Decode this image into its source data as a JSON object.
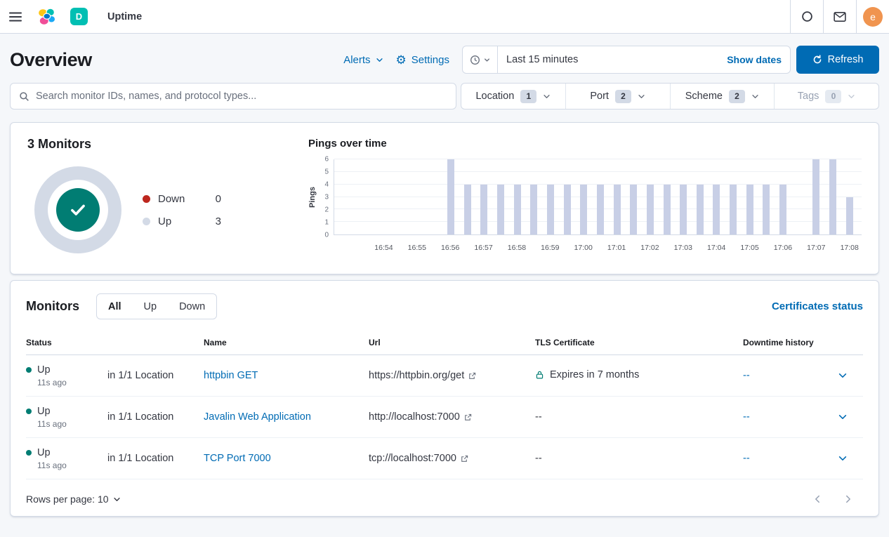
{
  "topbar": {
    "breadcrumb": "Uptime",
    "space_initial": "D",
    "user_initial": "e"
  },
  "page": {
    "title": "Overview",
    "alerts_label": "Alerts",
    "settings_label": "Settings",
    "time_range": "Last 15 minutes",
    "show_dates_label": "Show dates",
    "refresh_label": "Refresh"
  },
  "filters": {
    "search_placeholder": "Search monitor IDs, names, and protocol types...",
    "groups": [
      {
        "label": "Location",
        "count": "1",
        "disabled": false
      },
      {
        "label": "Port",
        "count": "2",
        "disabled": false
      },
      {
        "label": "Scheme",
        "count": "2",
        "disabled": false
      },
      {
        "label": "Tags",
        "count": "0",
        "disabled": true
      }
    ]
  },
  "snapshot": {
    "title": "3 Monitors",
    "legend": [
      {
        "label": "Down",
        "value": "0",
        "color": "#bd271e"
      },
      {
        "label": "Up",
        "value": "3",
        "color": "#d3dae6"
      }
    ]
  },
  "chart_data": {
    "type": "bar",
    "title": "Pings over time",
    "xlabel": "",
    "ylabel": "Pings",
    "ylim": [
      0,
      6
    ],
    "yticks": [
      0,
      1,
      2,
      3,
      4,
      5,
      6
    ],
    "xticks": [
      "16:54",
      "16:55",
      "16:56",
      "16:57",
      "16:58",
      "16:59",
      "17:00",
      "17:01",
      "17:02",
      "17:03",
      "17:04",
      "17:05",
      "17:06",
      "17:07",
      "17:08"
    ],
    "bar_color": "#c8cfe6",
    "grid": true,
    "legend_position": "none",
    "points": [
      {
        "x": "16:56:00",
        "y": 6
      },
      {
        "x": "16:56:30",
        "y": 4
      },
      {
        "x": "16:57:00",
        "y": 4
      },
      {
        "x": "16:57:30",
        "y": 4
      },
      {
        "x": "16:58:00",
        "y": 4
      },
      {
        "x": "16:58:30",
        "y": 4
      },
      {
        "x": "16:59:00",
        "y": 4
      },
      {
        "x": "16:59:30",
        "y": 4
      },
      {
        "x": "17:00:00",
        "y": 4
      },
      {
        "x": "17:00:30",
        "y": 4
      },
      {
        "x": "17:01:00",
        "y": 4
      },
      {
        "x": "17:01:30",
        "y": 4
      },
      {
        "x": "17:02:00",
        "y": 4
      },
      {
        "x": "17:02:30",
        "y": 4
      },
      {
        "x": "17:03:00",
        "y": 4
      },
      {
        "x": "17:03:30",
        "y": 4
      },
      {
        "x": "17:04:00",
        "y": 4
      },
      {
        "x": "17:04:30",
        "y": 4
      },
      {
        "x": "17:05:00",
        "y": 4
      },
      {
        "x": "17:05:30",
        "y": 4
      },
      {
        "x": "17:06:00",
        "y": 4
      },
      {
        "x": "17:07:00",
        "y": 6
      },
      {
        "x": "17:07:30",
        "y": 6
      },
      {
        "x": "17:08:00",
        "y": 3
      }
    ]
  },
  "monitors": {
    "title": "Monitors",
    "tabs": [
      "All",
      "Up",
      "Down"
    ],
    "selected_tab": "All",
    "certificates_link": "Certificates status",
    "columns": {
      "status": "Status",
      "name": "Name",
      "url": "Url",
      "tls": "TLS Certificate",
      "downtime": "Downtime history"
    },
    "rows": [
      {
        "status": "Up",
        "last_check": "11s ago",
        "location": "in 1/1 Location",
        "name": "httpbin GET",
        "url": "https://httpbin.org/get",
        "tls": "Expires in 7 months",
        "tls_has_lock": true,
        "downtime": "--"
      },
      {
        "status": "Up",
        "last_check": "11s ago",
        "location": "in 1/1 Location",
        "name": "Javalin Web Application",
        "url": "http://localhost:7000",
        "tls": "--",
        "tls_has_lock": false,
        "downtime": "--"
      },
      {
        "status": "Up",
        "last_check": "11s ago",
        "location": "in 1/1 Location",
        "name": "TCP Port 7000",
        "url": "tcp://localhost:7000",
        "tls": "--",
        "tls_has_lock": false,
        "downtime": "--"
      }
    ],
    "rows_per_page": "Rows per page: 10"
  },
  "colors": {
    "primary": "#006bb4",
    "success": "#017d73",
    "danger": "#bd271e",
    "bar": "#c8cfe6",
    "donut_ring": "#d3dae6",
    "border": "#d3dae6",
    "page_bg": "#f5f7fa",
    "space_avatar_bg": "#00bfb3",
    "user_avatar_bg": "#f0944f"
  }
}
